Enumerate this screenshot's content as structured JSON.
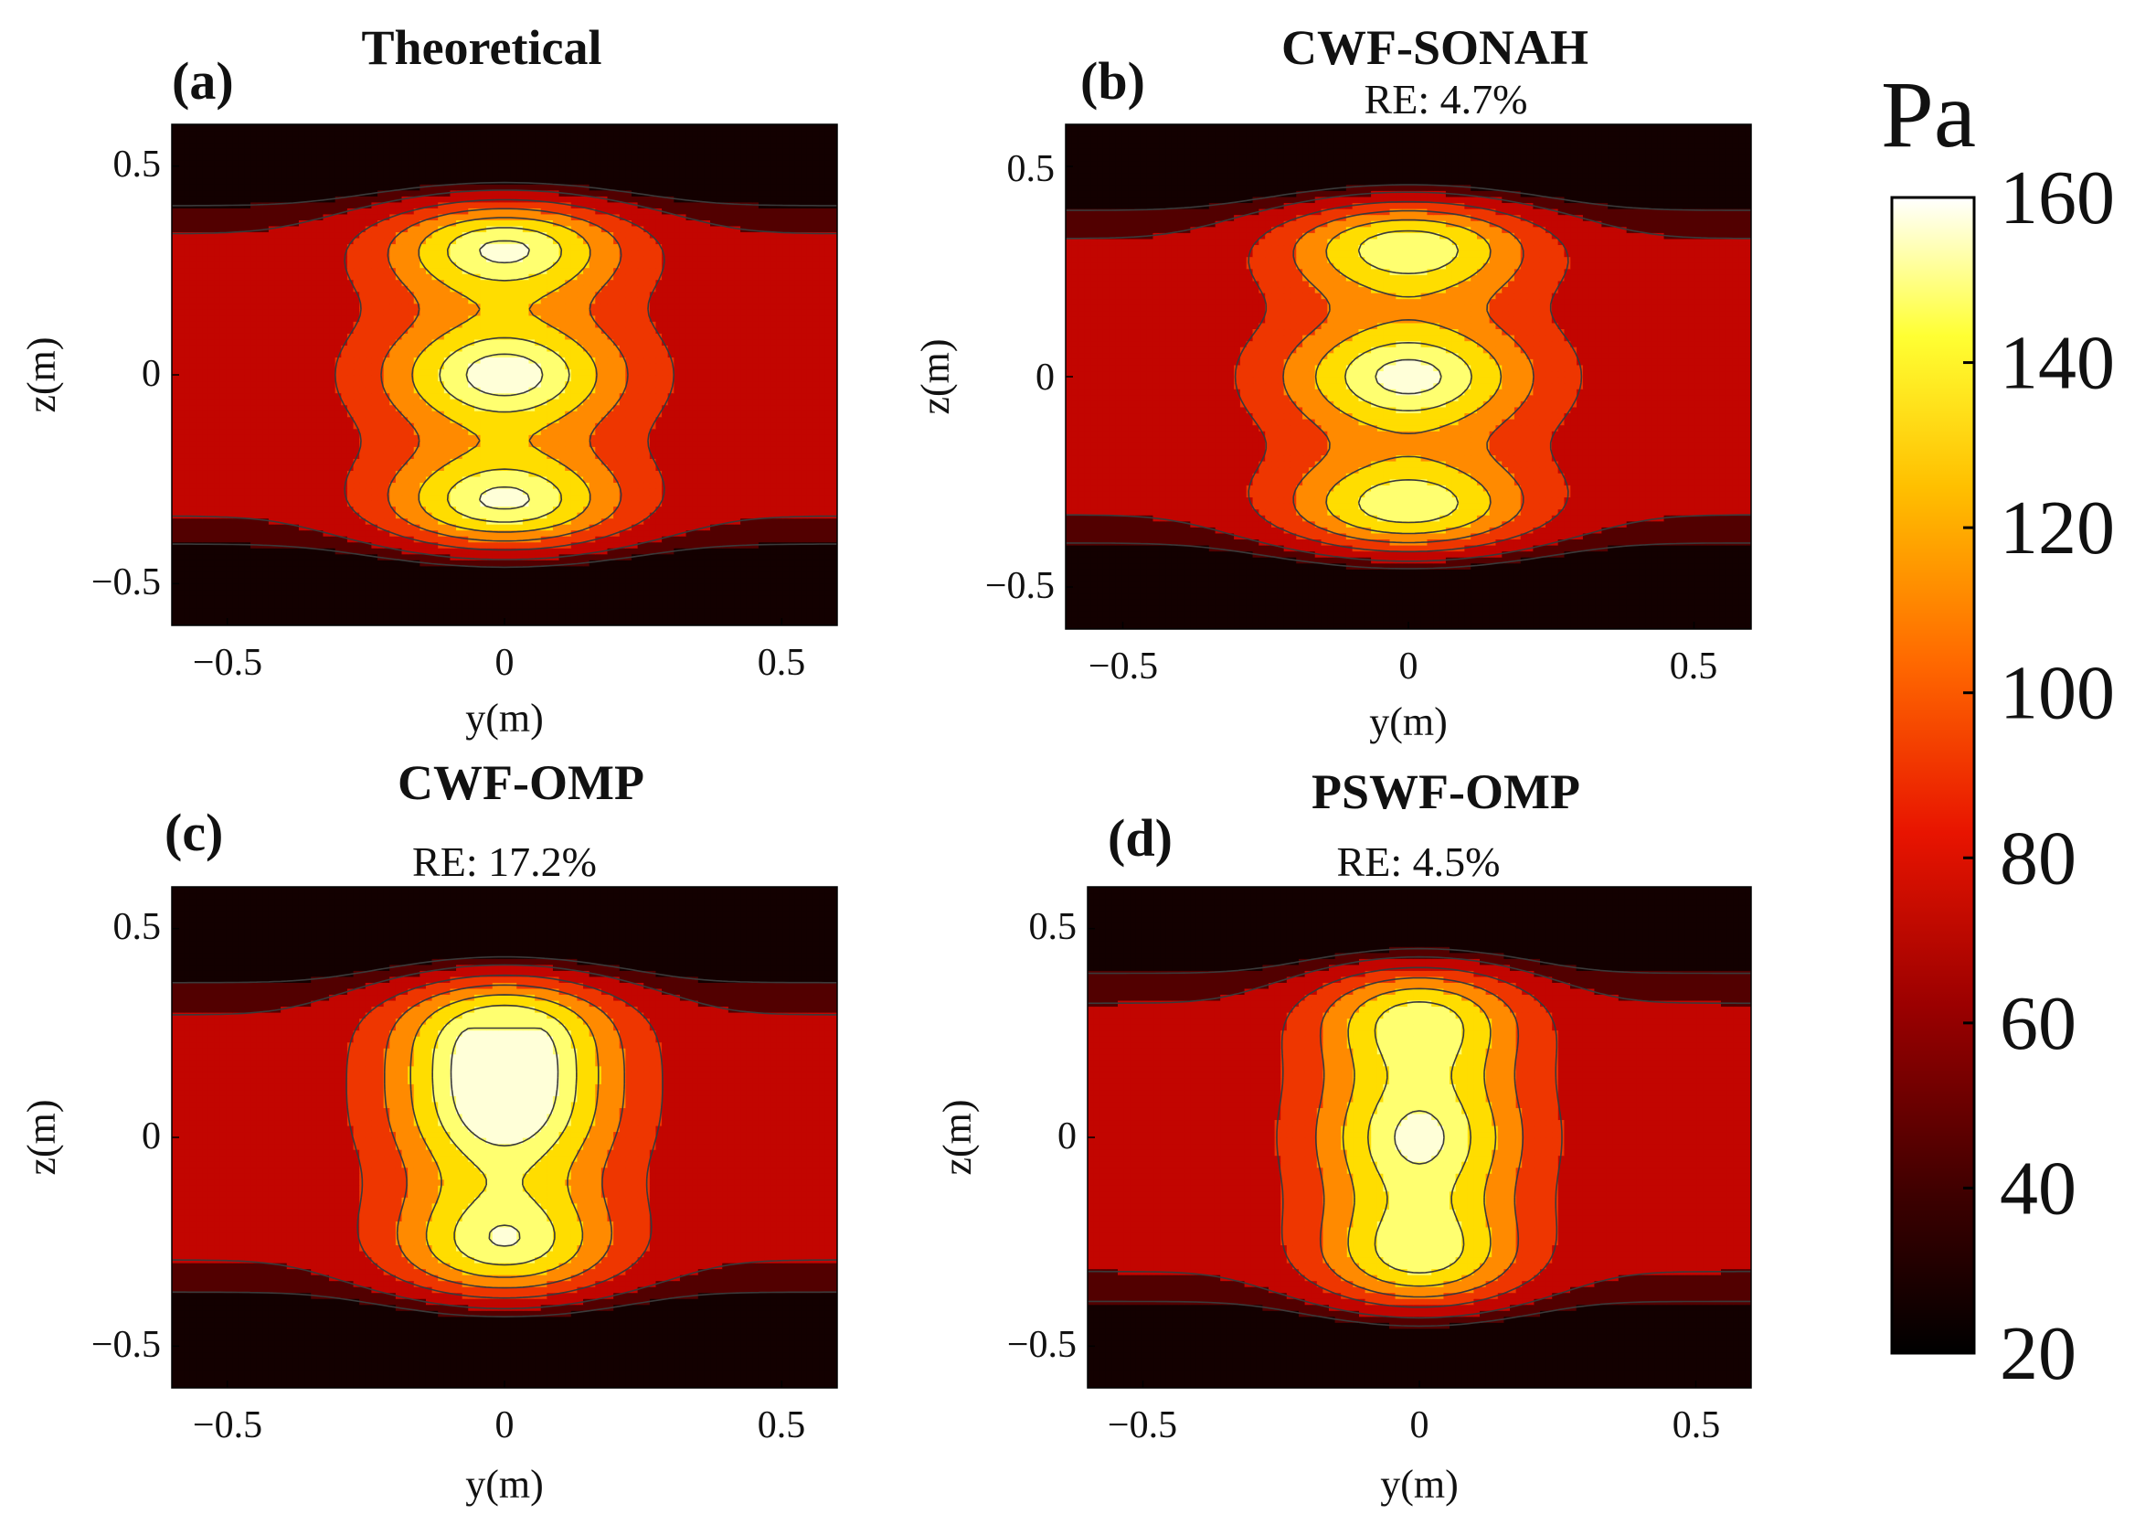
{
  "chart_data": {
    "type": "heatmap",
    "shared_scale": {
      "colorbar_title": "Pa",
      "min": 20,
      "max": 160,
      "ticks": [
        20,
        40,
        60,
        80,
        100,
        120,
        140,
        160
      ],
      "tick_labels": [
        "20",
        "40",
        "60",
        "80",
        "100",
        "120",
        "140",
        "160"
      ],
      "contour_levels": [
        36,
        50,
        72,
        95,
        118,
        140,
        158
      ],
      "level_colors": [
        "#130000",
        "#520000",
        "#c20500",
        "#ee3600",
        "#ff8a00",
        "#ffdd00",
        "#ffff70",
        "#ffffd8"
      ],
      "colormap": "hot"
    },
    "panels": [
      {
        "id": "a",
        "label": "(a)",
        "title": "Theoretical",
        "re": null,
        "xlabel": "y(m)",
        "ylabel": "z(m)",
        "xlim": [
          -0.6,
          0.6
        ],
        "ylim": [
          -0.6,
          0.6
        ],
        "xticks": [
          -0.5,
          0,
          0.5
        ],
        "xtick_labels": [
          "−0.5",
          "0",
          "0.5"
        ],
        "yticks": [
          -0.5,
          0,
          0.5
        ],
        "ytick_labels": [
          "−0.5",
          "0",
          "0.5"
        ],
        "field": {
          "background": 58,
          "peak": 176,
          "spread_y": 0.15,
          "spread_z": 0.1,
          "z_extent": 0.43,
          "edge": 0.05,
          "sources": [
            {
              "y": 0,
              "z": 0.32,
              "amp": 1.0
            },
            {
              "y": 0,
              "z": 0.0,
              "amp": 0.93
            },
            {
              "y": 0,
              "z": -0.32,
              "amp": 1.0
            }
          ]
        }
      },
      {
        "id": "b",
        "label": "(b)",
        "title": "CWF-SONAH",
        "re": "RE: 4.7%",
        "xlabel": "y(m)",
        "ylabel": "z(m)",
        "xlim": [
          -0.6,
          0.6
        ],
        "ylim": [
          -0.6,
          0.6
        ],
        "xticks": [
          -0.5,
          0,
          0.5
        ],
        "xtick_labels": [
          "−0.5",
          "0",
          "0.5"
        ],
        "yticks": [
          -0.5,
          0,
          0.5
        ],
        "ytick_labels": [
          "−0.5",
          "0",
          "0.5"
        ],
        "field": {
          "background": 58,
          "peak": 174,
          "spread_y": 0.15,
          "spread_z": 0.1,
          "z_extent": 0.42,
          "edge": 0.05,
          "sources": [
            {
              "y": 0,
              "z": 0.33,
              "amp": 1.0
            },
            {
              "y": 0,
              "z": 0.0,
              "amp": 0.92
            },
            {
              "y": 0,
              "z": -0.33,
              "amp": 1.0
            }
          ]
        }
      },
      {
        "id": "c",
        "label": "(c)",
        "title": "CWF-OMP",
        "re": "RE: 17.2%",
        "xlabel": "y(m)",
        "ylabel": "z(m)",
        "xlim": [
          -0.6,
          0.6
        ],
        "ylim": [
          -0.6,
          0.6
        ],
        "xticks": [
          -0.5,
          0,
          0.5
        ],
        "xtick_labels": [
          "−0.5",
          "0",
          "0.5"
        ],
        "yticks": [
          -0.5,
          0,
          0.5
        ],
        "ytick_labels": [
          "−0.5",
          "0",
          "0.5"
        ],
        "field": {
          "background": 56,
          "peak": 168,
          "spread_y": 0.14,
          "spread_z": 0.12,
          "z_extent": 0.4,
          "edge": 0.05,
          "sources": [
            {
              "y": 0,
              "z": 0.28,
              "amp": 0.95
            },
            {
              "y": 0,
              "z": 0.05,
              "amp": 0.9
            },
            {
              "y": 0,
              "z": -0.27,
              "amp": 0.97
            }
          ]
        }
      },
      {
        "id": "d",
        "label": "(d)",
        "title": "PSWF-OMP",
        "re": "RE: 4.5%",
        "xlabel": "y(m)",
        "ylabel": "z(m)",
        "xlim": [
          -0.6,
          0.6
        ],
        "ylim": [
          -0.6,
          0.6
        ],
        "xticks": [
          -0.5,
          0,
          0.5
        ],
        "xtick_labels": [
          "−0.5",
          "0",
          "0.5"
        ],
        "yticks": [
          -0.5,
          0,
          0.5
        ],
        "ytick_labels": [
          "−0.5",
          "0",
          "0.5"
        ],
        "field": {
          "background": 57,
          "peak": 166,
          "spread_y": 0.13,
          "spread_z": 0.12,
          "z_extent": 0.42,
          "edge": 0.05,
          "sources": [
            {
              "y": 0,
              "z": 0.3,
              "amp": 0.95
            },
            {
              "y": 0,
              "z": 0.0,
              "amp": 0.9
            },
            {
              "y": 0,
              "z": -0.3,
              "amp": 0.95
            }
          ]
        }
      }
    ]
  }
}
